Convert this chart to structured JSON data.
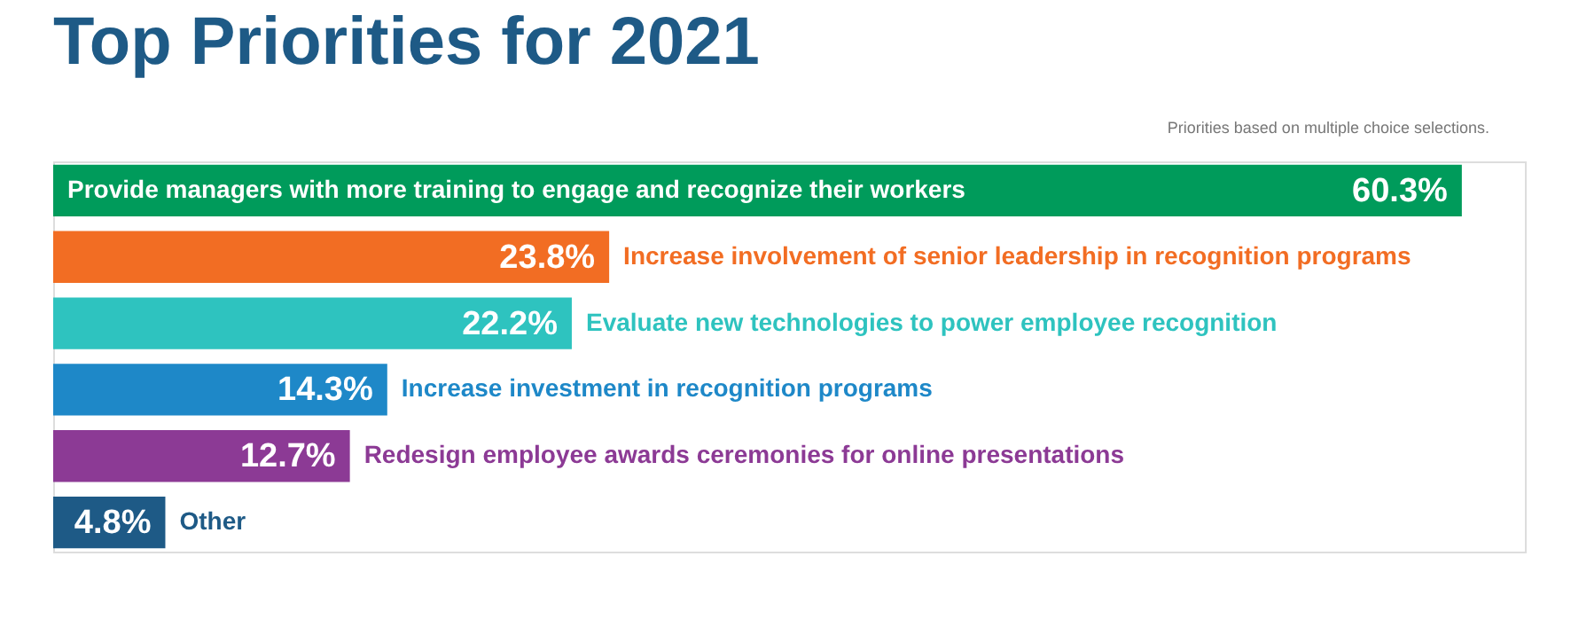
{
  "chart_data": {
    "type": "bar",
    "orientation": "horizontal",
    "title": "Top Priorities for 2021",
    "annotations": [
      "Priorities based on multiple choice selections."
    ],
    "categories": [
      "Provide managers with more training to engage and recognize their workers",
      "Increase involvement of senior leadership in recognition programs",
      "Evaluate new technologies to power employee recognition",
      "Increase investment in recognition programs",
      "Redesign employee awards ceremonies for online presentations",
      "Other"
    ],
    "values": [
      60.3,
      23.8,
      22.2,
      14.3,
      12.7,
      4.8
    ],
    "value_labels": [
      "60.3%",
      "23.8%",
      "22.2%",
      "14.3%",
      "12.7%",
      "4.8%"
    ],
    "colors": [
      "#009b5b",
      "#f26d23",
      "#2ec3bf",
      "#1e88c8",
      "#8c3a95",
      "#1e5a86"
    ],
    "xlim": [
      0,
      63
    ]
  }
}
